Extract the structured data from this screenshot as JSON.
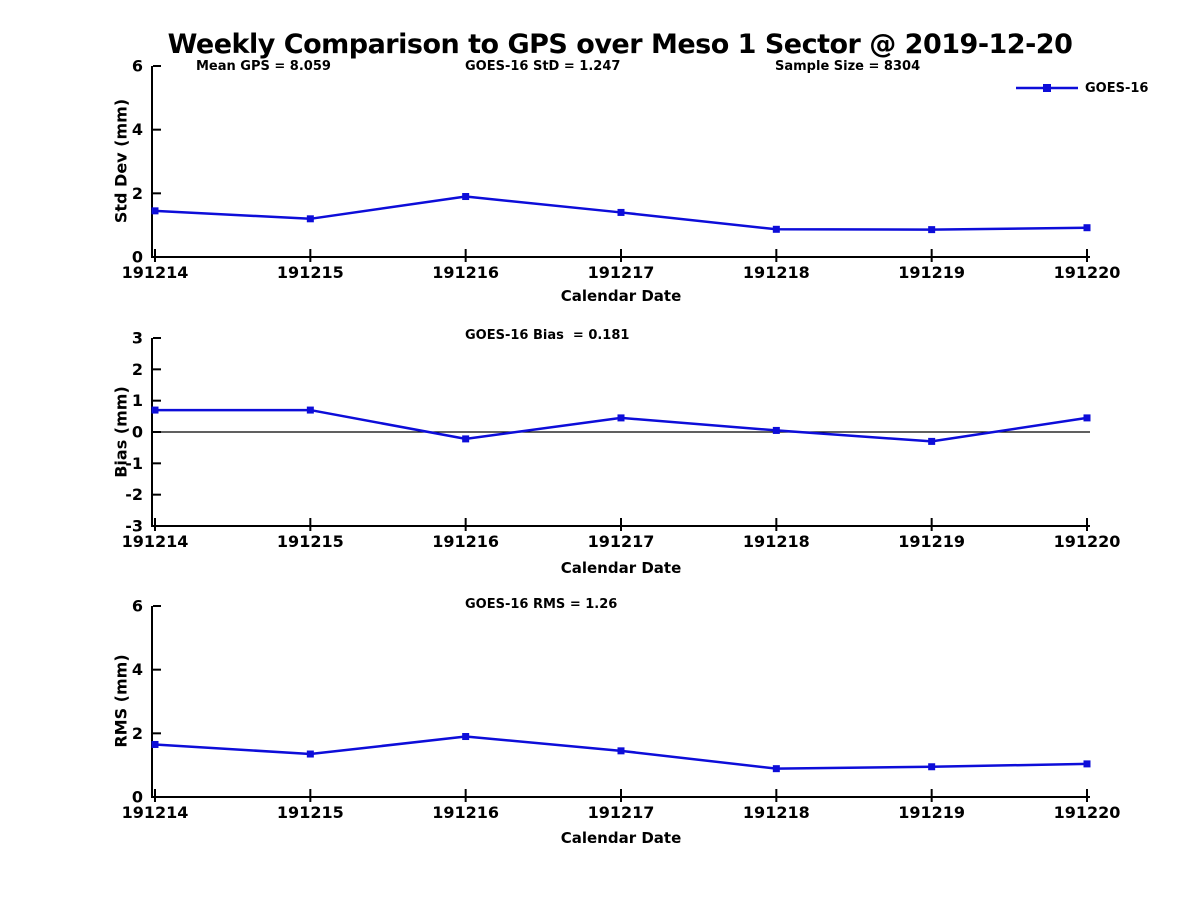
{
  "title": "Weekly Comparison to GPS over Meso 1 Sector @ 2019-12-20",
  "legend": {
    "label": "GOES-16"
  },
  "colors": {
    "line": "#0d0dd9",
    "axis": "#000000",
    "zero_line": "#000000"
  },
  "chart_data": [
    {
      "type": "line",
      "x": [
        "191214",
        "191215",
        "191216",
        "191217",
        "191218",
        "191219",
        "191220"
      ],
      "series": [
        {
          "name": "GOES-16",
          "values": [
            1.45,
            1.2,
            1.9,
            1.4,
            0.87,
            0.86,
            0.92
          ]
        }
      ],
      "xlabel": "Calendar Date",
      "ylabel": "Std Dev (mm)",
      "ylim": [
        0,
        6
      ],
      "yticks": [
        0,
        2,
        4,
        6
      ],
      "grid": false,
      "zero_line": false,
      "legend_position": "top-right-outside",
      "annotations": [
        {
          "text": "Mean GPS = 8.059"
        },
        {
          "text": "GOES-16 StD = 1.247"
        },
        {
          "text": "Sample Size = 8304"
        }
      ]
    },
    {
      "type": "line",
      "x": [
        "191214",
        "191215",
        "191216",
        "191217",
        "191218",
        "191219",
        "191220"
      ],
      "series": [
        {
          "name": "GOES-16",
          "values": [
            0.7,
            0.7,
            -0.22,
            0.45,
            0.05,
            -0.3,
            0.45
          ]
        }
      ],
      "xlabel": "Calendar Date",
      "ylabel": "Bias (mm)",
      "ylim": [
        -3,
        3
      ],
      "yticks": [
        -3,
        -2,
        -1,
        0,
        1,
        2,
        3
      ],
      "grid": false,
      "zero_line": true,
      "annotations": [
        {
          "text": "GOES-16 Bias  = 0.181"
        }
      ]
    },
    {
      "type": "line",
      "x": [
        "191214",
        "191215",
        "191216",
        "191217",
        "191218",
        "191219",
        "191220"
      ],
      "series": [
        {
          "name": "GOES-16",
          "values": [
            1.65,
            1.35,
            1.9,
            1.45,
            0.89,
            0.95,
            1.04
          ]
        }
      ],
      "xlabel": "Calendar Date",
      "ylabel": "RMS (mm)",
      "ylim": [
        0,
        6
      ],
      "yticks": [
        0,
        2,
        4,
        6
      ],
      "grid": false,
      "zero_line": false,
      "annotations": [
        {
          "text": "GOES-16 RMS = 1.26"
        }
      ]
    }
  ]
}
